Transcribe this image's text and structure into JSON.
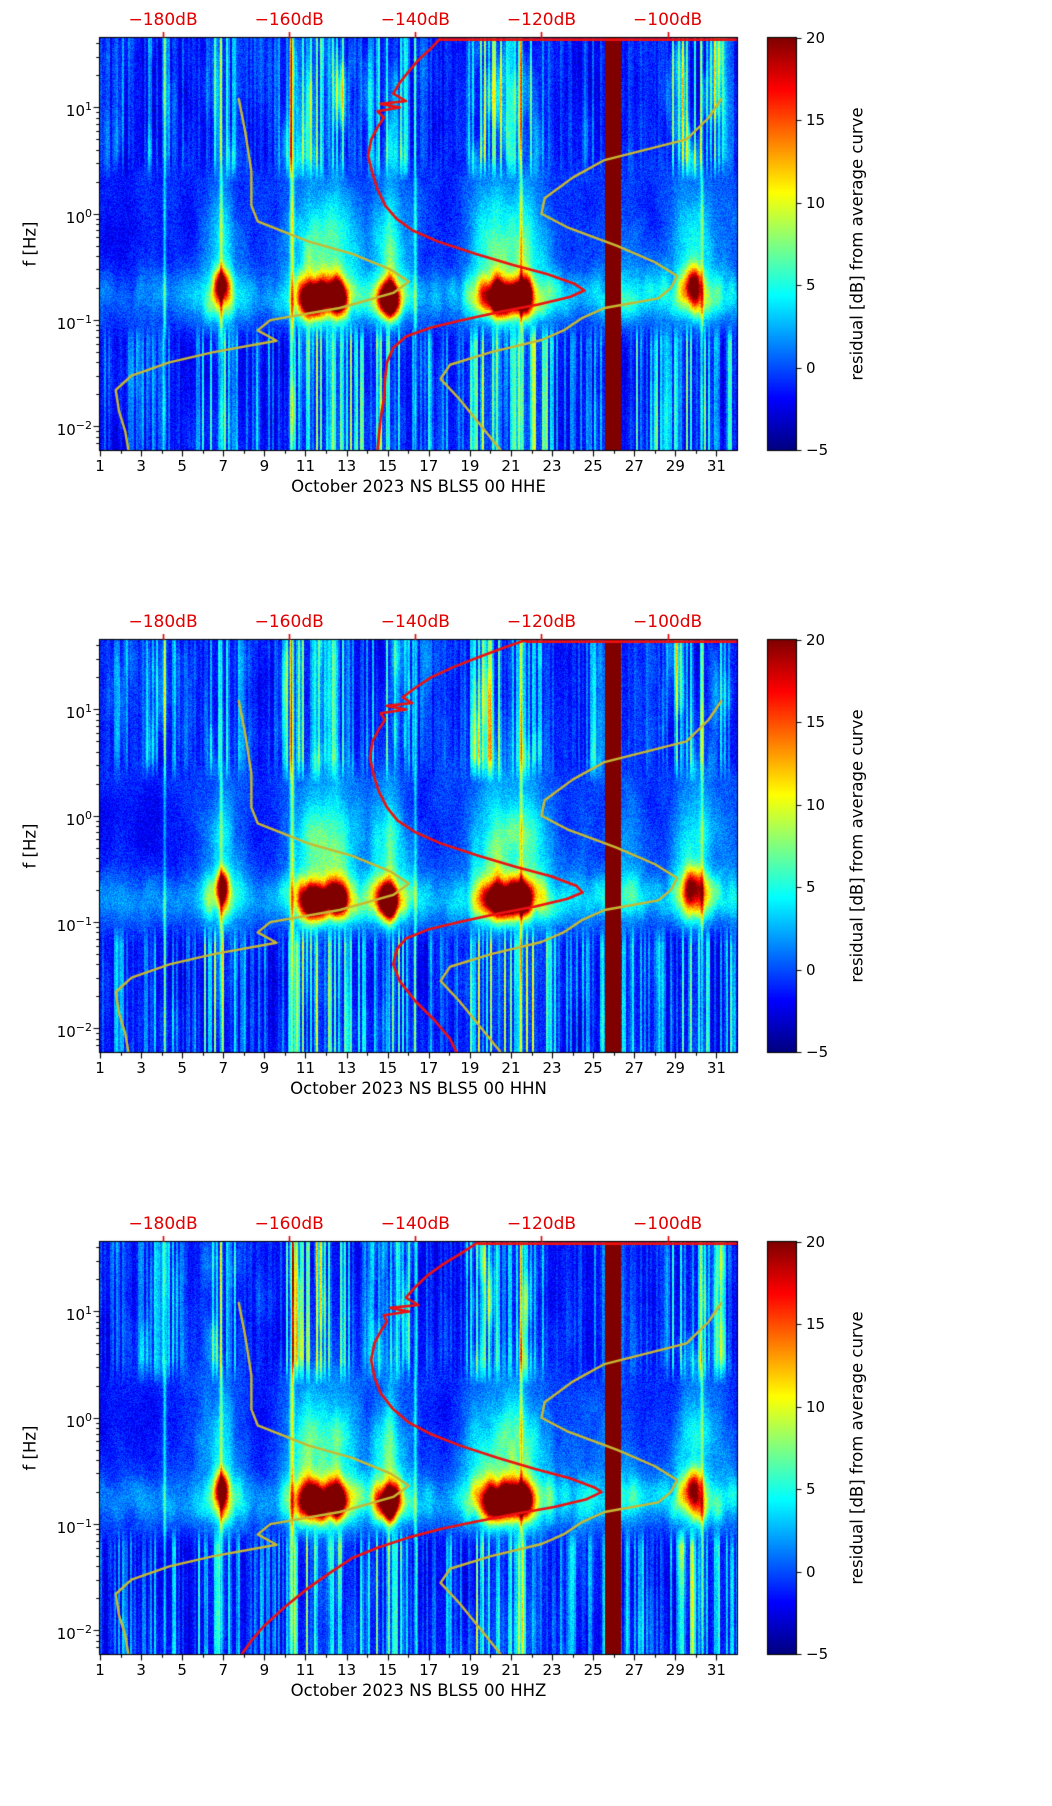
{
  "figure": {
    "background": "#ffffff"
  },
  "colors": {
    "axis_red": "#e10000",
    "psd_curve": "#ee1111",
    "noise_model_curve": "#c8b832",
    "spine": "#000000"
  },
  "noise_models": {
    "nlnm_db_vs_hz": [
      [
        12,
        -168
      ],
      [
        6,
        -167
      ],
      [
        2.5,
        -166
      ],
      [
        1.2,
        -166
      ],
      [
        0.85,
        -165
      ],
      [
        0.55,
        -157
      ],
      [
        0.42,
        -150
      ],
      [
        0.3,
        -144
      ],
      [
        0.23,
        -141
      ],
      [
        0.18,
        -143.5
      ],
      [
        0.13,
        -152
      ],
      [
        0.1,
        -163
      ],
      [
        0.08,
        -165
      ],
      [
        0.064,
        -162
      ],
      [
        0.05,
        -172
      ],
      [
        0.04,
        -179
      ],
      [
        0.03,
        -185
      ],
      [
        0.022,
        -187.5
      ],
      [
        0.014,
        -187
      ],
      [
        0.009,
        -186
      ],
      [
        0.006,
        -185.5
      ]
    ],
    "nhnm_db_vs_hz": [
      [
        12,
        -91.5
      ],
      [
        8,
        -93.5
      ],
      [
        5,
        -97
      ],
      [
        3.2,
        -110
      ],
      [
        2.2,
        -115
      ],
      [
        1.4,
        -119.5
      ],
      [
        1.0,
        -120
      ],
      [
        0.75,
        -116
      ],
      [
        0.5,
        -108
      ],
      [
        0.35,
        -102
      ],
      [
        0.26,
        -98.5
      ],
      [
        0.2,
        -99.5
      ],
      [
        0.16,
        -101.5
      ],
      [
        0.13,
        -110
      ],
      [
        0.105,
        -113.5
      ],
      [
        0.08,
        -116.5
      ],
      [
        0.065,
        -120
      ],
      [
        0.05,
        -128
      ],
      [
        0.038,
        -134.5
      ],
      [
        0.028,
        -136
      ],
      [
        0.018,
        -133
      ],
      [
        0.01,
        -129.5
      ],
      [
        0.006,
        -126.5
      ]
    ]
  },
  "spectrogram_features": {
    "saturated_column": {
      "start": 25.6,
      "end": 26.35,
      "value": 20
    },
    "band_amp_by_day": [
      [
        1,
        2.5
      ],
      [
        2.5,
        2
      ],
      [
        4,
        2.5
      ],
      [
        5.5,
        3
      ],
      [
        6.5,
        8
      ],
      [
        7,
        13
      ],
      [
        7.6,
        5
      ],
      [
        8.5,
        2.5
      ],
      [
        9.5,
        3
      ],
      [
        10.4,
        7
      ],
      [
        11.2,
        17
      ],
      [
        11.8,
        15
      ],
      [
        12.5,
        17
      ],
      [
        13.2,
        8
      ],
      [
        14,
        6
      ],
      [
        14.7,
        11
      ],
      [
        15.1,
        18
      ],
      [
        15.6,
        9
      ],
      [
        16.5,
        4
      ],
      [
        17.5,
        3
      ],
      [
        18.5,
        4
      ],
      [
        19.5,
        10
      ],
      [
        20.3,
        16
      ],
      [
        21,
        15
      ],
      [
        21.7,
        16
      ],
      [
        22.4,
        9
      ],
      [
        23.2,
        5
      ],
      [
        24,
        3.5
      ],
      [
        25,
        4
      ],
      [
        26.8,
        6
      ],
      [
        27.8,
        4
      ],
      [
        28.8,
        5
      ],
      [
        29.6,
        11
      ],
      [
        30.2,
        12
      ],
      [
        30.8,
        7
      ],
      [
        32,
        4
      ]
    ],
    "high_band_days": [
      [
        1.5,
        2.5,
        3
      ],
      [
        3,
        5,
        4
      ],
      [
        6.3,
        7.8,
        5
      ],
      [
        9.8,
        13.2,
        6.5
      ],
      [
        14,
        16.6,
        5
      ],
      [
        18.8,
        22.6,
        6
      ],
      [
        24.6,
        25.4,
        3.5
      ],
      [
        28.6,
        31.4,
        6.5
      ]
    ],
    "hotspots": [
      {
        "day": 6.95,
        "logf": -0.66,
        "amp": 15,
        "sd": 0.22,
        "sf": 0.1
      },
      {
        "day": 11.45,
        "logf": -0.8,
        "amp": 21,
        "sd": 0.4,
        "sf": 0.1
      },
      {
        "day": 12.55,
        "logf": -0.79,
        "amp": 19,
        "sd": 0.3,
        "sf": 0.09
      },
      {
        "day": 15.05,
        "logf": -0.8,
        "amp": 21,
        "sd": 0.35,
        "sf": 0.1
      },
      {
        "day": 20.55,
        "logf": -0.8,
        "amp": 20,
        "sd": 0.55,
        "sf": 0.1
      },
      {
        "day": 21.6,
        "logf": -0.78,
        "amp": 18,
        "sd": 0.28,
        "sf": 0.1
      },
      {
        "day": 29.9,
        "logf": -0.66,
        "amp": 13,
        "sd": 0.3,
        "sf": 0.12
      }
    ],
    "bright_lines": [
      {
        "day": 10.35,
        "width": 0.07,
        "amp": 11
      },
      {
        "day": 6.9,
        "width": 0.05,
        "amp": 7
      },
      {
        "day": 4.15,
        "width": 0.05,
        "amp": 6
      },
      {
        "day": 16.35,
        "width": 0.05,
        "amp": 6
      },
      {
        "day": 21.5,
        "width": 0.05,
        "amp": 8
      },
      {
        "day": 30.3,
        "width": 0.05,
        "amp": 6
      }
    ]
  },
  "chart_data": [
    {
      "type": "heatmap",
      "channel": "HHE",
      "title": "October 2023 NS BLS5 00 HHE",
      "ylabel": "f [Hz]",
      "x_ticks": [
        1,
        3,
        5,
        7,
        9,
        11,
        13,
        15,
        17,
        19,
        21,
        23,
        25,
        27,
        29,
        31
      ],
      "x_range": [
        1,
        32
      ],
      "y_exponent_ticks": [
        1,
        0,
        -1,
        -2
      ],
      "y_range_hz": [
        0.006,
        45
      ],
      "top_axis": {
        "labels": [
          "-180dB",
          "-160dB",
          "-140dB",
          "-120dB",
          "-100dB"
        ],
        "values": [
          -180,
          -160,
          -140,
          -120,
          -100
        ],
        "db_range": [
          -190,
          -89
        ]
      },
      "colorbar": {
        "label": "residual [dB] from average curve",
        "ticks": [
          20,
          15,
          10,
          5,
          0,
          -5
        ],
        "range": [
          -5,
          20
        ],
        "colormap": "jet"
      },
      "psd_curve_db_vs_hz": [
        [
          45,
          -136
        ],
        [
          36,
          -137.5
        ],
        [
          28,
          -139.5
        ],
        [
          22,
          -141
        ],
        [
          17,
          -142.5
        ],
        [
          13.5,
          -143.5
        ],
        [
          11.5,
          -141.5
        ],
        [
          10.8,
          -145.5
        ],
        [
          10,
          -142.5
        ],
        [
          9.2,
          -146
        ],
        [
          8,
          -145
        ],
        [
          6.5,
          -146
        ],
        [
          5,
          -147
        ],
        [
          3.5,
          -147.5
        ],
        [
          2.4,
          -146.8
        ],
        [
          1.7,
          -146
        ],
        [
          1.2,
          -144.8
        ],
        [
          0.9,
          -143
        ],
        [
          0.7,
          -140.5
        ],
        [
          0.55,
          -136.5
        ],
        [
          0.42,
          -130.5
        ],
        [
          0.33,
          -124.5
        ],
        [
          0.27,
          -119
        ],
        [
          0.22,
          -114.8
        ],
        [
          0.19,
          -113.2
        ],
        [
          0.165,
          -115.5
        ],
        [
          0.14,
          -120.5
        ],
        [
          0.12,
          -126.5
        ],
        [
          0.1,
          -132.5
        ],
        [
          0.085,
          -137.5
        ],
        [
          0.07,
          -141.5
        ],
        [
          0.055,
          -143.5
        ],
        [
          0.04,
          -144.5
        ],
        [
          0.028,
          -144.8
        ],
        [
          0.018,
          -145
        ],
        [
          0.012,
          -145.5
        ],
        [
          0.008,
          -145.8
        ],
        [
          0.006,
          -146
        ]
      ],
      "seed": 1
    },
    {
      "type": "heatmap",
      "channel": "HHN",
      "title": "October 2023 NS BLS5 00 HHN",
      "ylabel": "f [Hz]",
      "x_ticks": [
        1,
        3,
        5,
        7,
        9,
        11,
        13,
        15,
        17,
        19,
        21,
        23,
        25,
        27,
        29,
        31
      ],
      "x_range": [
        1,
        32
      ],
      "y_exponent_ticks": [
        1,
        0,
        -1,
        -2
      ],
      "y_range_hz": [
        0.006,
        45
      ],
      "top_axis": {
        "labels": [
          "-180dB",
          "-160dB",
          "-140dB",
          "-120dB",
          "-100dB"
        ],
        "values": [
          -180,
          -160,
          -140,
          -120,
          -100
        ],
        "db_range": [
          -190,
          -89
        ]
      },
      "colorbar": {
        "label": "residual [dB] from average curve",
        "ticks": [
          20,
          15,
          10,
          5,
          0,
          -5
        ],
        "range": [
          -5,
          20
        ],
        "colormap": "jet"
      },
      "psd_curve_db_vs_hz": [
        [
          45,
          -122.5
        ],
        [
          38,
          -126
        ],
        [
          31,
          -130
        ],
        [
          25,
          -134
        ],
        [
          20,
          -137.5
        ],
        [
          16,
          -140
        ],
        [
          13,
          -142
        ],
        [
          11.5,
          -140.5
        ],
        [
          10.8,
          -144.5
        ],
        [
          10,
          -141.5
        ],
        [
          9.2,
          -145.5
        ],
        [
          8,
          -144.8
        ],
        [
          6.5,
          -145.8
        ],
        [
          5,
          -146.8
        ],
        [
          3.5,
          -147.2
        ],
        [
          2.4,
          -146.6
        ],
        [
          1.7,
          -145.8
        ],
        [
          1.2,
          -144.5
        ],
        [
          0.9,
          -142.8
        ],
        [
          0.7,
          -140
        ],
        [
          0.55,
          -136
        ],
        [
          0.42,
          -130
        ],
        [
          0.33,
          -124
        ],
        [
          0.27,
          -118.5
        ],
        [
          0.22,
          -114.5
        ],
        [
          0.19,
          -113.5
        ],
        [
          0.165,
          -116
        ],
        [
          0.14,
          -121
        ],
        [
          0.12,
          -127
        ],
        [
          0.1,
          -133
        ],
        [
          0.085,
          -138
        ],
        [
          0.07,
          -141.5
        ],
        [
          0.055,
          -143
        ],
        [
          0.04,
          -143.5
        ],
        [
          0.028,
          -142.5
        ],
        [
          0.018,
          -140
        ],
        [
          0.012,
          -137
        ],
        [
          0.008,
          -134.5
        ],
        [
          0.006,
          -133.5
        ]
      ],
      "seed": 2
    },
    {
      "type": "heatmap",
      "channel": "HHZ",
      "title": "October 2023 NS BLS5 00 HHZ",
      "ylabel": "f [Hz]",
      "x_ticks": [
        1,
        3,
        5,
        7,
        9,
        11,
        13,
        15,
        17,
        19,
        21,
        23,
        25,
        27,
        29,
        31
      ],
      "x_range": [
        1,
        32
      ],
      "y_exponent_ticks": [
        1,
        0,
        -1,
        -2
      ],
      "y_range_hz": [
        0.006,
        45
      ],
      "top_axis": {
        "labels": [
          "-180dB",
          "-160dB",
          "-140dB",
          "-120dB",
          "-100dB"
        ],
        "values": [
          -180,
          -160,
          -140,
          -120,
          -100
        ],
        "db_range": [
          -190,
          -89
        ]
      },
      "colorbar": {
        "label": "residual [dB] from average curve",
        "ticks": [
          20,
          15,
          10,
          5,
          0,
          -5
        ],
        "range": [
          -5,
          20
        ],
        "colormap": "jet"
      },
      "psd_curve_db_vs_hz": [
        [
          45,
          -130
        ],
        [
          36,
          -132.5
        ],
        [
          28,
          -135.5
        ],
        [
          22,
          -138
        ],
        [
          17,
          -140
        ],
        [
          13.5,
          -141.5
        ],
        [
          11.5,
          -139.5
        ],
        [
          10.8,
          -144
        ],
        [
          10,
          -141
        ],
        [
          9.2,
          -145
        ],
        [
          8,
          -144.5
        ],
        [
          6.5,
          -145.5
        ],
        [
          5,
          -146.5
        ],
        [
          3.5,
          -147
        ],
        [
          2.4,
          -146.5
        ],
        [
          1.7,
          -145.5
        ],
        [
          1.2,
          -143.5
        ],
        [
          0.9,
          -141
        ],
        [
          0.7,
          -137.5
        ],
        [
          0.55,
          -133
        ],
        [
          0.42,
          -127
        ],
        [
          0.33,
          -121
        ],
        [
          0.27,
          -115.5
        ],
        [
          0.22,
          -111.5
        ],
        [
          0.2,
          -110.5
        ],
        [
          0.17,
          -113
        ],
        [
          0.145,
          -118
        ],
        [
          0.125,
          -124
        ],
        [
          0.105,
          -130.5
        ],
        [
          0.09,
          -136
        ],
        [
          0.075,
          -141
        ],
        [
          0.06,
          -146
        ],
        [
          0.048,
          -150
        ],
        [
          0.035,
          -153.5
        ],
        [
          0.025,
          -157
        ],
        [
          0.017,
          -160.5
        ],
        [
          0.011,
          -164
        ],
        [
          0.008,
          -166
        ],
        [
          0.006,
          -167.5
        ]
      ],
      "seed": 3
    }
  ]
}
